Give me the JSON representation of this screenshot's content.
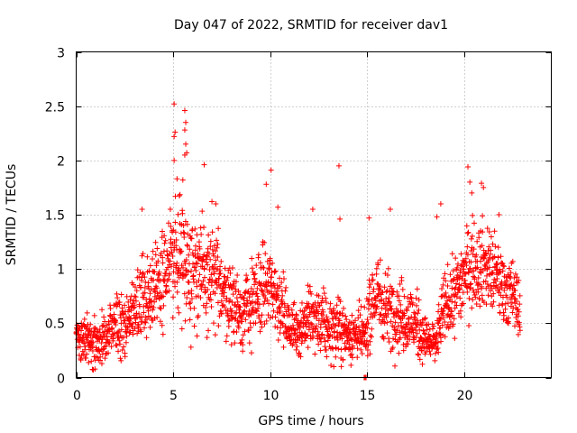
{
  "chart_data": {
    "type": "scatter",
    "title": "Day 047 of 2022, SRMTID for receiver dav1",
    "xlabel": "GPS time / hours",
    "ylabel": "SRMTID / TECUs",
    "xlim": [
      0,
      24.5
    ],
    "ylim": [
      0,
      3
    ],
    "xticks": [
      0,
      5,
      10,
      15,
      20
    ],
    "yticks": [
      0,
      0.5,
      1,
      1.5,
      2,
      2.5,
      3
    ],
    "xtick_labels": [
      "0",
      "5",
      "10",
      "15",
      "20"
    ],
    "ytick_labels": [
      "0",
      "0.5",
      "1",
      "1.5",
      "2",
      "2.5",
      "3"
    ],
    "grid": true,
    "marker": "+",
    "series": [
      {
        "name": "SRMTID dav1",
        "color": "#ff0000",
        "envelope": {
          "x": [
            0,
            0.5,
            1,
            1.5,
            2,
            2.5,
            3,
            3.5,
            4,
            4.5,
            5,
            5.5,
            6,
            6.5,
            7,
            7.5,
            8,
            8.5,
            9,
            9.5,
            10,
            10.5,
            11,
            11.5,
            12,
            12.5,
            13,
            13.5,
            14,
            14.5,
            14.9,
            15.2,
            15.5,
            16,
            16.5,
            17,
            17.5,
            18,
            18.5,
            19,
            19.5,
            20,
            20.5,
            21,
            21.5,
            22,
            22.5,
            22.9
          ],
          "center": [
            0.4,
            0.35,
            0.3,
            0.35,
            0.45,
            0.5,
            0.6,
            0.75,
            0.85,
            0.95,
            1.1,
            1.15,
            1.0,
            0.95,
            0.9,
            0.85,
            0.7,
            0.6,
            0.65,
            0.8,
            0.85,
            0.7,
            0.45,
            0.45,
            0.55,
            0.5,
            0.45,
            0.45,
            0.4,
            0.4,
            0.35,
            0.7,
            0.75,
            0.65,
            0.6,
            0.55,
            0.5,
            0.35,
            0.3,
            0.65,
            0.75,
            0.95,
            1.05,
            1.05,
            0.95,
            0.85,
            0.75,
            0.65
          ],
          "spread": [
            0.18,
            0.18,
            0.18,
            0.2,
            0.22,
            0.25,
            0.3,
            0.35,
            0.35,
            0.4,
            0.45,
            0.5,
            0.45,
            0.4,
            0.4,
            0.35,
            0.3,
            0.3,
            0.35,
            0.35,
            0.35,
            0.3,
            0.2,
            0.22,
            0.25,
            0.28,
            0.25,
            0.25,
            0.22,
            0.22,
            0.2,
            0.35,
            0.35,
            0.3,
            0.3,
            0.3,
            0.28,
            0.18,
            0.18,
            0.28,
            0.3,
            0.35,
            0.35,
            0.35,
            0.35,
            0.3,
            0.28,
            0.25
          ]
        },
        "peaks": [
          {
            "x": 5.05,
            "y": 2.52
          },
          {
            "x": 5.6,
            "y": 2.46
          },
          {
            "x": 5.1,
            "y": 2.26
          },
          {
            "x": 5.05,
            "y": 2.22
          },
          {
            "x": 5.65,
            "y": 2.35
          },
          {
            "x": 5.6,
            "y": 2.28
          },
          {
            "x": 5.65,
            "y": 2.15
          },
          {
            "x": 5.7,
            "y": 2.07
          },
          {
            "x": 5.6,
            "y": 2.05
          },
          {
            "x": 5.05,
            "y": 2.0
          },
          {
            "x": 6.6,
            "y": 1.96
          },
          {
            "x": 10.05,
            "y": 1.91
          },
          {
            "x": 13.55,
            "y": 1.95
          },
          {
            "x": 20.2,
            "y": 1.94
          },
          {
            "x": 5.2,
            "y": 1.83
          },
          {
            "x": 5.5,
            "y": 1.82
          },
          {
            "x": 9.8,
            "y": 1.78
          },
          {
            "x": 20.3,
            "y": 1.8
          },
          {
            "x": 20.9,
            "y": 1.79
          },
          {
            "x": 21.0,
            "y": 1.75
          },
          {
            "x": 20.4,
            "y": 1.7
          },
          {
            "x": 7.0,
            "y": 1.62
          },
          {
            "x": 7.2,
            "y": 1.6
          },
          {
            "x": 10.4,
            "y": 1.57
          },
          {
            "x": 12.2,
            "y": 1.55
          },
          {
            "x": 16.2,
            "y": 1.55
          },
          {
            "x": 18.6,
            "y": 1.48
          },
          {
            "x": 18.8,
            "y": 1.6
          },
          {
            "x": 13.6,
            "y": 1.46
          },
          {
            "x": 15.1,
            "y": 1.47
          },
          {
            "x": 3.4,
            "y": 1.55
          },
          {
            "x": 21.8,
            "y": 1.5
          }
        ],
        "zeros": [
          14.85,
          14.9,
          14.95
        ]
      }
    ]
  }
}
